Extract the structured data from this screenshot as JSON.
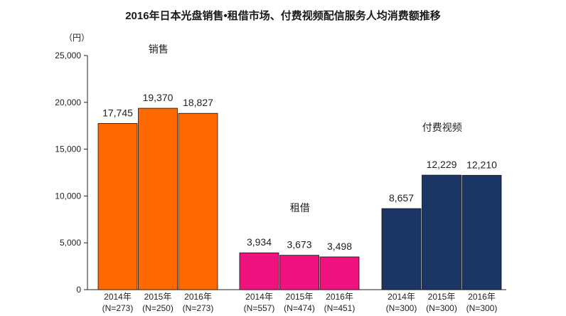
{
  "chart_data": {
    "type": "bar",
    "title": "2016年日本光盘销售•租借市场、付费视频配信服务人均消费额推移",
    "ylabel": "（円）",
    "xlabel": "",
    "ylim": [
      0,
      25000
    ],
    "yticks": [
      "0",
      "5,000",
      "10,000",
      "15,000",
      "20,000",
      "25,000"
    ],
    "yticks_values": [
      0,
      5000,
      10000,
      15000,
      20000,
      25000
    ],
    "grid": false,
    "groups": [
      {
        "name": "销售",
        "color": "#FF6A00",
        "bars": [
          {
            "year": "2014年",
            "n": "(N=273)",
            "value": 17745,
            "label": "17,745"
          },
          {
            "year": "2015年",
            "n": "(N=250)",
            "value": 19370,
            "label": "19,370"
          },
          {
            "year": "2016年",
            "n": "(N=273)",
            "value": 18827,
            "label": "18,827"
          }
        ]
      },
      {
        "name": "租借",
        "color": "#F0127F",
        "bars": [
          {
            "year": "2014年",
            "n": "(N=557)",
            "value": 3934,
            "label": "3,934"
          },
          {
            "year": "2015年",
            "n": "(N=474)",
            "value": 3673,
            "label": "3,673"
          },
          {
            "year": "2016年",
            "n": "(N=451)",
            "value": 3498,
            "label": "3,498"
          }
        ]
      },
      {
        "name": "付费视频",
        "color": "#1B3564",
        "bars": [
          {
            "year": "2014年",
            "n": "(N=300)",
            "value": 8657,
            "label": "8,657"
          },
          {
            "year": "2015年",
            "n": "(N=300)",
            "value": 12229,
            "label": "12,229"
          },
          {
            "year": "2016年",
            "n": "(N=300)",
            "value": 12210,
            "label": "12,210"
          }
        ]
      }
    ]
  }
}
